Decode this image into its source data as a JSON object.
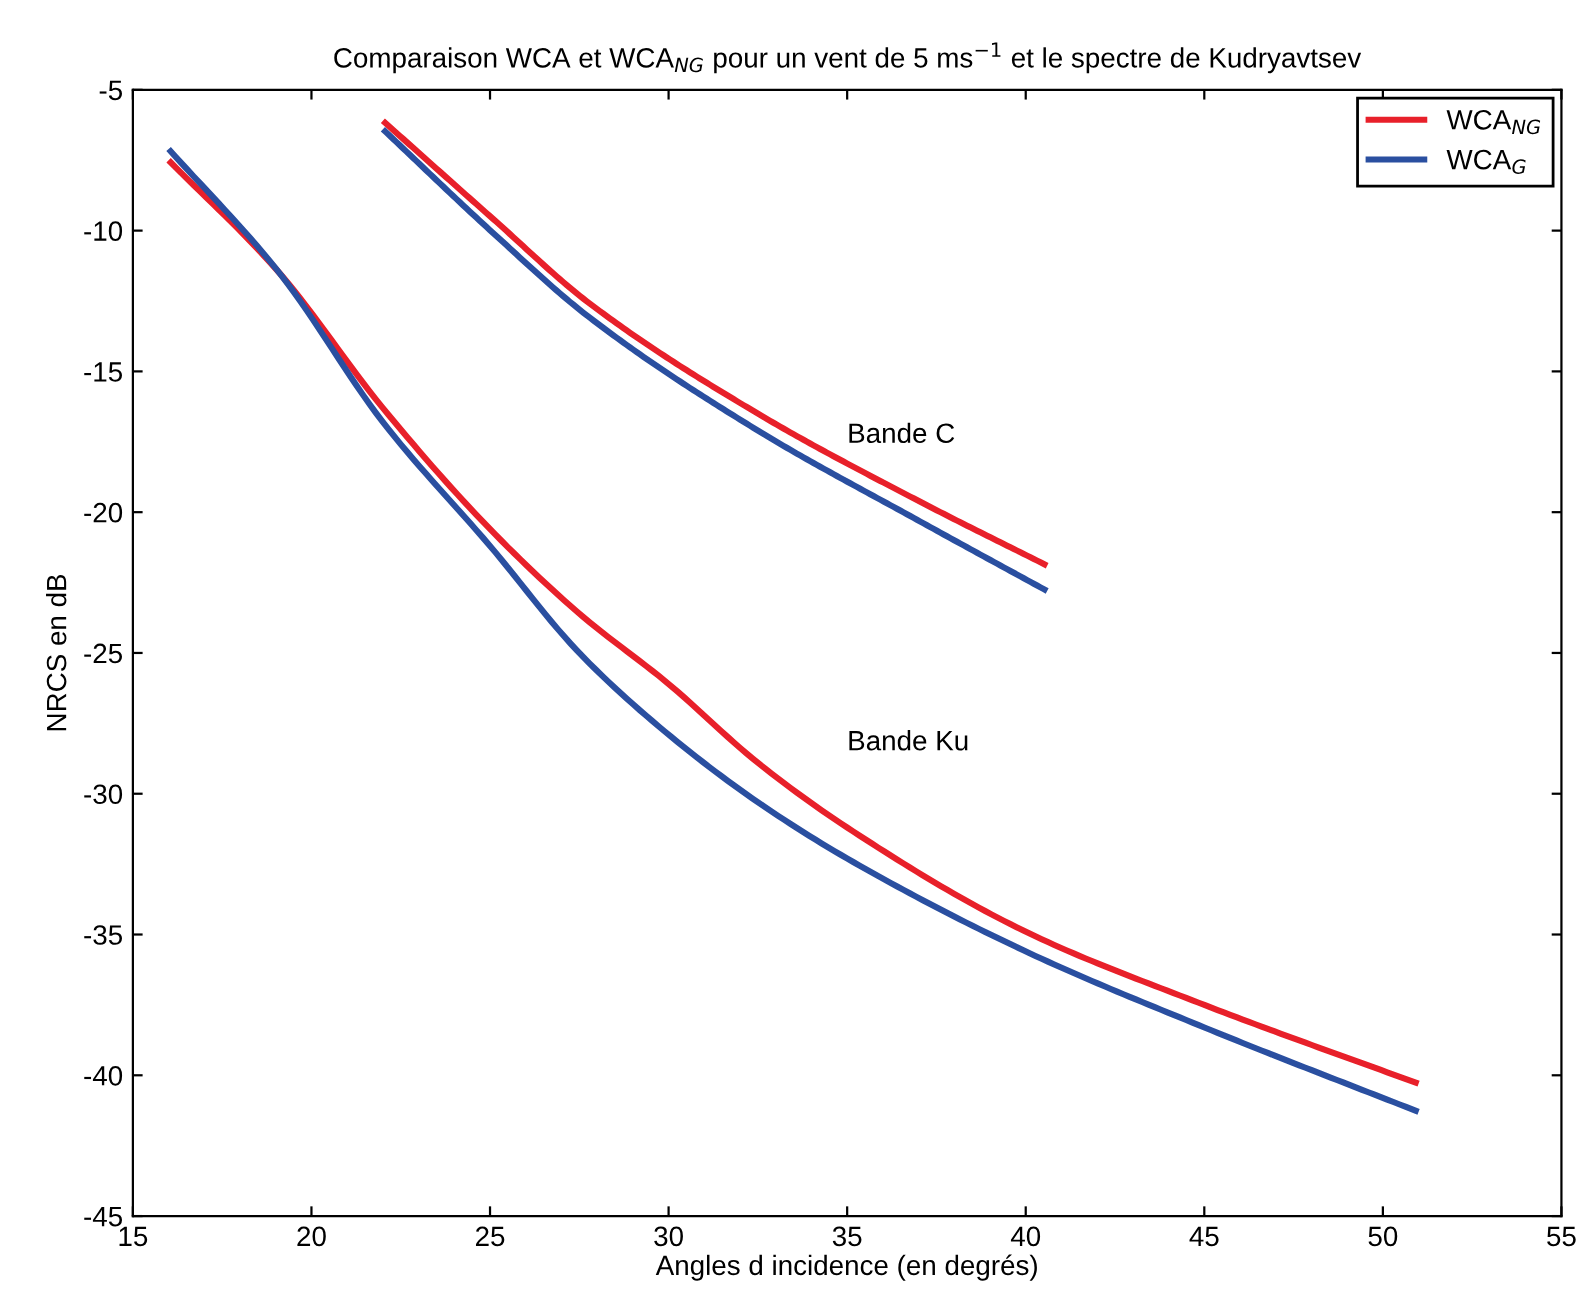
{
  "chart_data": {
    "type": "line",
    "title": "Comparaison WCA et WCA$_{NG}$ pour un vent de 5 ms$^{−1}$ et le spectre de Kudryavtsev",
    "xlabel": "Angles d incidence (en degrés)",
    "ylabel": "NRCS en dB",
    "xlim": [
      15,
      55
    ],
    "xticks": [
      15,
      20,
      25,
      30,
      35,
      40,
      45,
      50,
      55
    ],
    "ylim": [
      -45,
      -5
    ],
    "yticks": [
      -45,
      -40,
      -35,
      -30,
      -25,
      -20,
      -15,
      -10,
      -5
    ],
    "grid": false,
    "legend": "top right",
    "line_style": "solid",
    "marker": "none",
    "series": [
      {
        "name": "WCA$_{NG}$",
        "color": "#e8202a",
        "x": [
          16.0,
          19.1,
          22.0,
          25.0,
          27.5,
          30,
          32.5,
          35,
          40,
          45,
          51
        ],
        "values": [
          -7.5,
          -11.5,
          -16.3,
          -20.6,
          -23.6,
          -26.1,
          -28.9,
          -31.2,
          -34.9,
          -37.5,
          -40.3
        ]
      },
      {
        "name": "WCA$_{G}$",
        "color": "#2a4fa0",
        "x": [
          16.0,
          19.1,
          22.0,
          25.0,
          27.5,
          30,
          32.5,
          35,
          40,
          45,
          51
        ],
        "values": [
          -7.1,
          -11.5,
          -16.8,
          -21.2,
          -25.0,
          -27.9,
          -30.3,
          -32.3,
          -35.6,
          -38.3,
          -41.3
        ]
      },
      {
        "color": "#e8202a",
        "x": [
          22.0,
          25.1,
          27.7,
          32.5,
          37.0,
          40.6
        ],
        "values": [
          -6.1,
          -9.6,
          -12.5,
          -16.5,
          -19.6,
          -21.9
        ]
      },
      {
        "color": "#2a4fa0",
        "x": [
          22.0,
          25.1,
          27.7,
          32.5,
          37.0,
          40.6
        ],
        "values": [
          -6.4,
          -10.1,
          -13.0,
          -17.1,
          -20.3,
          -22.8
        ]
      }
    ],
    "annotations": [
      "Bande C",
      "Bande Ku"
    ]
  }
}
